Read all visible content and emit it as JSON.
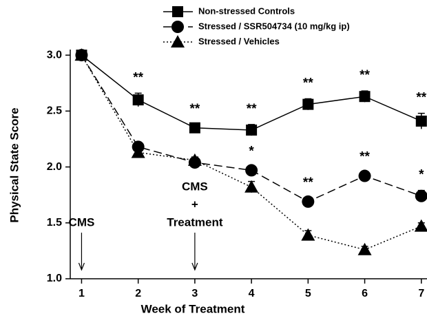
{
  "chart_data": {
    "type": "line",
    "x_label": "Week of Treatment",
    "y_label": "Physical State Score",
    "x": [
      1,
      2,
      3,
      4,
      5,
      6,
      7
    ],
    "xlim": [
      0.8,
      7.1
    ],
    "xticks": [
      1,
      2,
      3,
      4,
      5,
      6,
      7
    ],
    "ylim": [
      1.0,
      3.05
    ],
    "yticks": [
      {
        "value": 1.0,
        "label": "1.0"
      },
      1.5,
      {
        "value": 2.0,
        "label": "2.0"
      },
      2.5,
      {
        "value": 3.0,
        "label": "3.0"
      }
    ],
    "legend": "top",
    "series": [
      {
        "name": "Non-stressed Controls",
        "color": "#000000",
        "dash": "solid",
        "marker": "square",
        "values": [
          3.0,
          2.6,
          2.35,
          2.33,
          2.56,
          2.63,
          2.41
        ],
        "errors": [
          0.02,
          0.06,
          0.03,
          0.05,
          0.05,
          0.05,
          0.07
        ],
        "annotations": [
          null,
          "**",
          "**",
          "**",
          "**",
          "**",
          "**"
        ]
      },
      {
        "name": "Stressed / SSR504734 (10 mg/kg ip)",
        "color": "#000000",
        "dash": "dashed",
        "marker": "circle",
        "values": [
          3.0,
          2.18,
          2.04,
          1.97,
          1.69,
          1.92,
          1.74
        ],
        "errors": [
          0.02,
          0.03,
          0.03,
          0.03,
          0.03,
          0.03,
          0.05
        ],
        "annotations": [
          null,
          null,
          null,
          "*",
          "**",
          "**",
          "*"
        ]
      },
      {
        "name": "Stressed / Vehicles",
        "color": "#000000",
        "dash": "dotted",
        "marker": "triangle",
        "values": [
          3.0,
          2.13,
          2.06,
          1.82,
          1.39,
          1.26,
          1.47
        ],
        "errors": [
          0.02,
          0.03,
          0.03,
          0.05,
          0.04,
          0.03,
          0.03
        ],
        "annotations": [
          null,
          null,
          null,
          null,
          null,
          null,
          null
        ]
      }
    ],
    "events": [
      {
        "x": 1,
        "label": [
          "CMS"
        ]
      },
      {
        "x": 3,
        "label": [
          "CMS",
          "+",
          "Treatment"
        ]
      }
    ]
  }
}
